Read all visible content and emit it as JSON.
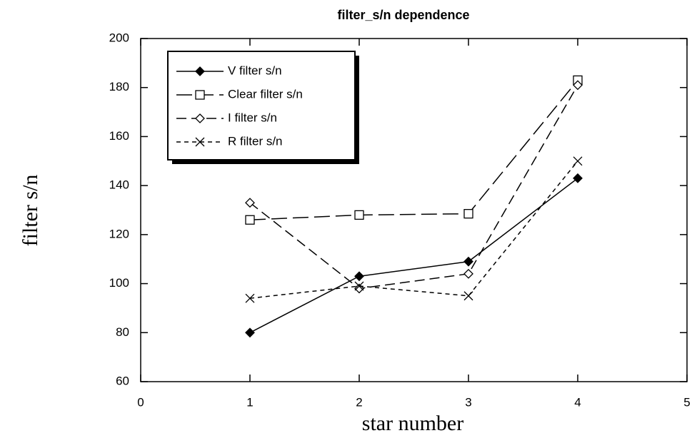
{
  "chart_data": {
    "type": "line",
    "title": "filter_s/n dependence",
    "xlabel": "star number",
    "ylabel": "filter s/n",
    "xlim": [
      0,
      5
    ],
    "xticks": [
      0,
      1,
      2,
      3,
      4,
      5
    ],
    "ylim": [
      60,
      200
    ],
    "yticks": [
      60,
      80,
      100,
      120,
      140,
      160,
      180,
      200
    ],
    "legend": "upper left",
    "series": [
      {
        "name": "V filter s/n",
        "color": "#000000",
        "marker": "filled-diamond",
        "dash": "solid",
        "x": [
          1,
          2,
          3,
          4
        ],
        "values": [
          80,
          103,
          109,
          143
        ]
      },
      {
        "name": "Clear filter s/n",
        "color": "#000000",
        "marker": "open-square",
        "dash": "long",
        "x": [
          1,
          2,
          3,
          4
        ],
        "values": [
          126,
          128,
          128.5,
          183
        ]
      },
      {
        "name": "I filter s/n",
        "color": "#000000",
        "marker": "open-diamond",
        "dash": "medium",
        "x": [
          1,
          2,
          3,
          4
        ],
        "values": [
          133,
          98,
          104,
          181
        ]
      },
      {
        "name": "R filter s/n",
        "color": "#000000",
        "marker": "cross",
        "dash": "short",
        "x": [
          1,
          2,
          3,
          4
        ],
        "values": [
          94,
          99,
          95,
          150
        ]
      }
    ]
  }
}
